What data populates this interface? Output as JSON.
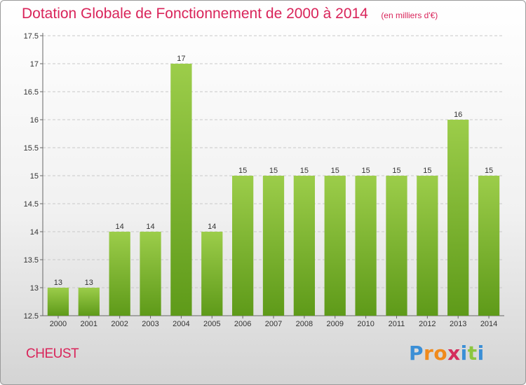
{
  "title": "Dotation Globale de Fonctionnement de 2000 à 2014",
  "unit": "(en milliers d'€)",
  "commune": "CHEUST",
  "brand": {
    "letters": [
      "P",
      "r",
      "o",
      "x",
      "i",
      "t",
      "i"
    ],
    "colors": [
      "#3b8fd6",
      "#f08a1c",
      "#f08a1c",
      "#d42c5c",
      "#3b8fd6",
      "#8cc63f",
      "#3b8fd6"
    ]
  },
  "colors": {
    "bar_light": "#9ccd4a",
    "bar_dark": "#5e9a19",
    "title": "#d9245a"
  },
  "chart_data": {
    "type": "bar",
    "categories": [
      "2000",
      "2001",
      "2002",
      "2003",
      "2004",
      "2005",
      "2006",
      "2007",
      "2008",
      "2009",
      "2010",
      "2011",
      "2012",
      "2013",
      "2014"
    ],
    "values": [
      13,
      13,
      14,
      14,
      17,
      14,
      15,
      15,
      15,
      15,
      15,
      15,
      15,
      16,
      15
    ],
    "data_labels": [
      "13",
      "13",
      "14",
      "14",
      "17",
      "14",
      "15",
      "15",
      "15",
      "15",
      "15",
      "15",
      "15",
      "16",
      "15"
    ],
    "ylim": [
      12.5,
      17.5
    ],
    "yticks": [
      12.5,
      13,
      13.5,
      14,
      14.5,
      15,
      15.5,
      16,
      16.5,
      17,
      17.5
    ],
    "ytick_labels": [
      "12.5",
      "13",
      "13.5",
      "14",
      "14.5",
      "15",
      "15.5",
      "16",
      "16.5",
      "17",
      "17.5"
    ],
    "grid": true,
    "title": "Dotation Globale de Fonctionnement de 2000 à 2014",
    "xlabel": "",
    "ylabel": ""
  }
}
